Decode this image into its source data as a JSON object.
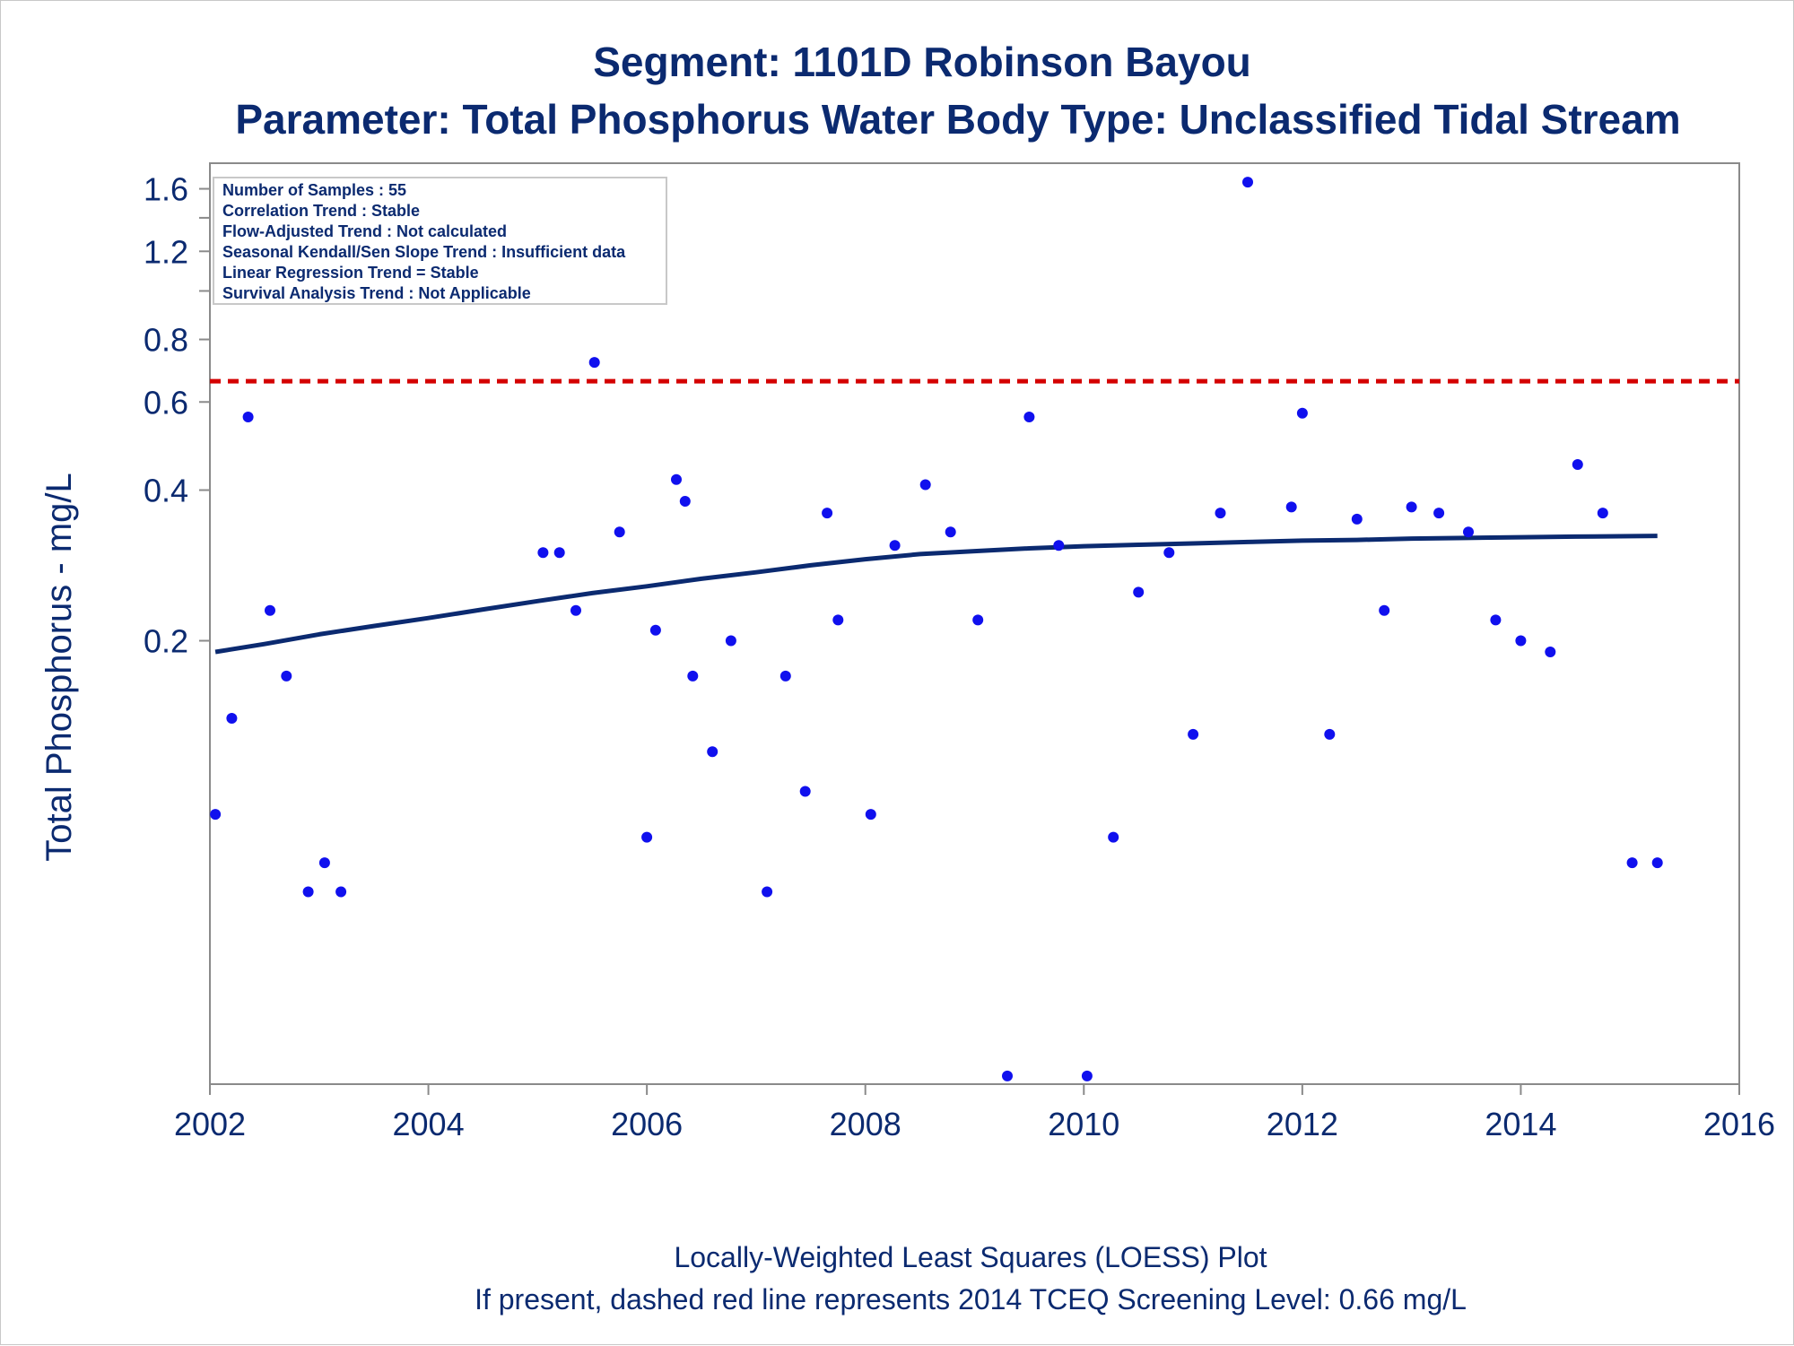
{
  "titles": {
    "line1": "Segment: 1101D  Robinson Bayou",
    "line2": "Parameter: Total Phosphorus   Water Body Type: Unclassified Tidal Stream"
  },
  "footnotes": {
    "line1": "Locally-Weighted Least Squares (LOESS) Plot",
    "line2": "If present, dashed red line represents 2014 TCEQ Screening Level: 0.66 mg/L"
  },
  "info_box": [
    "Number of Samples : 55",
    "Correlation Trend : Stable",
    "Flow-Adjusted Trend : Not calculated",
    "Seasonal Kendall/Sen Slope Trend : Insufficient data",
    "Linear Regression Trend = Stable",
    "Survival Analysis Trend : Not Applicable"
  ],
  "colors": {
    "title": "#0b2a70",
    "points": "#1010ee",
    "loess": "#0b2a70",
    "screening": "#d40000",
    "axis": "#8a8a8a"
  },
  "chart_data": {
    "type": "scatter",
    "xlabel": "",
    "ylabel": "Total Phosphorus - mg/L",
    "x_scale": "time (decimal year)",
    "y_scale": "log",
    "xlim": [
      2002,
      2016
    ],
    "ylim": [
      0.026,
      1.8
    ],
    "x_ticks": [
      2002,
      2004,
      2006,
      2008,
      2010,
      2012,
      2014,
      2016
    ],
    "x_tick_labels": [
      "2002",
      "2004",
      "2006",
      "2008",
      "2010",
      "2012",
      "2014",
      "2016"
    ],
    "y_ticks": [
      0.2,
      0.4,
      0.6,
      0.8,
      1.2,
      1.6
    ],
    "y_tick_labels": [
      "0.2",
      "0.4",
      "0.6",
      "0.8",
      "1.2",
      "1.6"
    ],
    "y_minor_ticks": [
      1.0,
      1.4
    ],
    "screening_level": 0.66,
    "points": [
      [
        2002.05,
        0.09
      ],
      [
        2002.2,
        0.14
      ],
      [
        2002.35,
        0.56
      ],
      [
        2002.55,
        0.23
      ],
      [
        2002.7,
        0.17
      ],
      [
        2002.9,
        0.063
      ],
      [
        2003.05,
        0.072
      ],
      [
        2003.2,
        0.063
      ],
      [
        2005.05,
        0.3
      ],
      [
        2005.2,
        0.3
      ],
      [
        2005.35,
        0.23
      ],
      [
        2005.52,
        0.72
      ],
      [
        2005.75,
        0.33
      ],
      [
        2006.0,
        0.081
      ],
      [
        2006.08,
        0.21
      ],
      [
        2006.27,
        0.42
      ],
      [
        2006.35,
        0.38
      ],
      [
        2006.42,
        0.17
      ],
      [
        2006.6,
        0.12
      ],
      [
        2006.77,
        0.2
      ],
      [
        2007.1,
        0.063
      ],
      [
        2007.27,
        0.17
      ],
      [
        2007.45,
        0.1
      ],
      [
        2007.65,
        0.36
      ],
      [
        2007.75,
        0.22
      ],
      [
        2008.05,
        0.09
      ],
      [
        2008.27,
        0.31
      ],
      [
        2008.55,
        0.41
      ],
      [
        2008.78,
        0.33
      ],
      [
        2009.03,
        0.22
      ],
      [
        2009.3,
        0.027
      ],
      [
        2009.5,
        0.56
      ],
      [
        2009.77,
        0.31
      ],
      [
        2010.03,
        0.027
      ],
      [
        2010.27,
        0.081
      ],
      [
        2010.5,
        0.25
      ],
      [
        2010.78,
        0.3
      ],
      [
        2011.0,
        0.13
      ],
      [
        2011.25,
        0.36
      ],
      [
        2011.5,
        1.65
      ],
      [
        2011.9,
        0.37
      ],
      [
        2012.0,
        0.57
      ],
      [
        2012.25,
        0.13
      ],
      [
        2012.5,
        0.35
      ],
      [
        2012.75,
        0.23
      ],
      [
        2013.0,
        0.37
      ],
      [
        2013.25,
        0.36
      ],
      [
        2013.52,
        0.33
      ],
      [
        2013.77,
        0.22
      ],
      [
        2014.0,
        0.2
      ],
      [
        2014.27,
        0.19
      ],
      [
        2014.52,
        0.45
      ],
      [
        2014.75,
        0.36
      ],
      [
        2015.02,
        0.072
      ],
      [
        2015.25,
        0.072
      ]
    ],
    "series": [
      {
        "type": "line",
        "points": [
          [
            2002.05,
            0.19
          ],
          [
            2002.5,
            0.197
          ],
          [
            2003.0,
            0.206
          ],
          [
            2003.5,
            0.214
          ],
          [
            2004.0,
            0.222
          ],
          [
            2004.5,
            0.231
          ],
          [
            2005.0,
            0.24
          ],
          [
            2005.5,
            0.249
          ],
          [
            2006.0,
            0.257
          ],
          [
            2006.5,
            0.266
          ],
          [
            2007.0,
            0.274
          ],
          [
            2007.5,
            0.283
          ],
          [
            2008.0,
            0.291
          ],
          [
            2008.5,
            0.298
          ],
          [
            2009.0,
            0.302
          ],
          [
            2009.5,
            0.306
          ],
          [
            2010.0,
            0.309
          ],
          [
            2010.5,
            0.311
          ],
          [
            2011.0,
            0.313
          ],
          [
            2011.5,
            0.315
          ],
          [
            2012.0,
            0.317
          ],
          [
            2012.5,
            0.318
          ],
          [
            2013.0,
            0.32
          ],
          [
            2013.5,
            0.321
          ],
          [
            2014.0,
            0.322
          ],
          [
            2014.5,
            0.323
          ],
          [
            2015.25,
            0.324
          ]
        ]
      }
    ]
  }
}
